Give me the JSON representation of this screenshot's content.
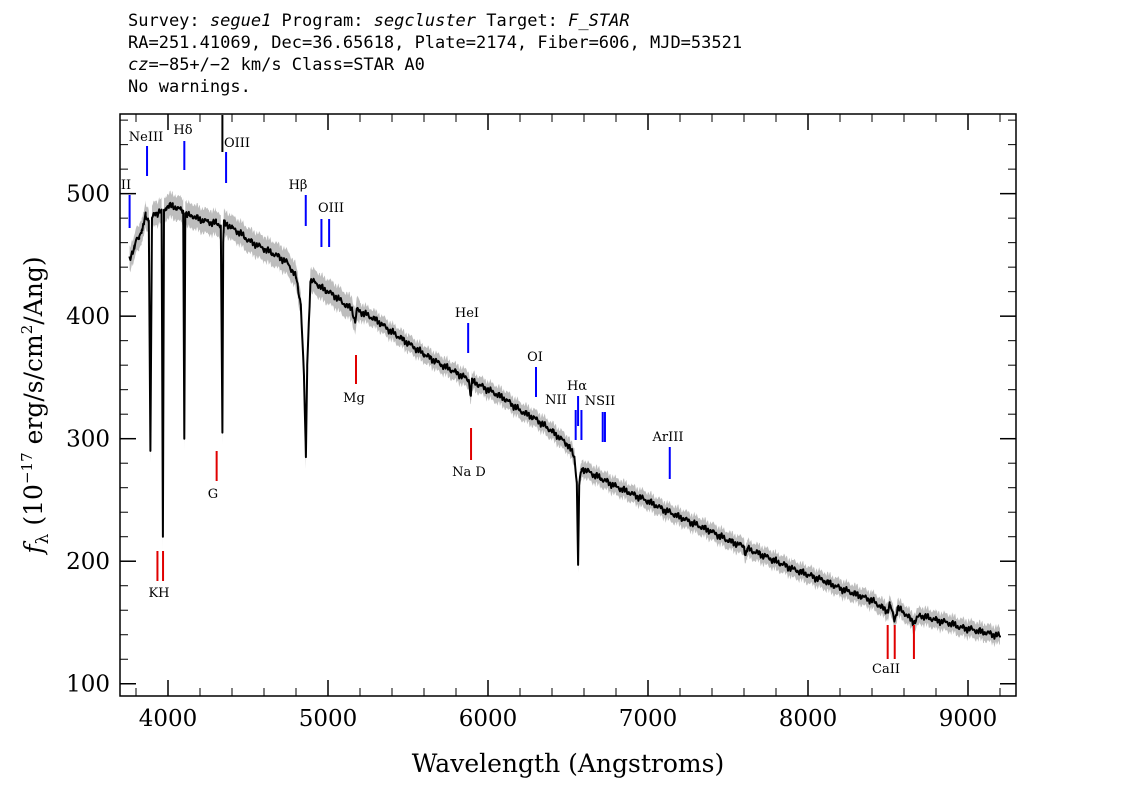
{
  "header": {
    "line1": {
      "survey_label": "Survey: ",
      "survey": "segue1",
      "program_label": " Program: ",
      "program": "segcluster",
      "target_label": " Target: ",
      "target": "F_STAR"
    },
    "line2": "RA=251.41069, Dec=36.65618, Plate=2174, Fiber=606, MJD=53521",
    "line3": {
      "cz_label": "cz",
      "cz_value": "=−85+/−2",
      "cz_rest": " km/s Class=STAR A0"
    },
    "line4": "No warnings."
  },
  "colors": {
    "spectrum": "#000000",
    "error_band": "#bdbdbd",
    "emission": "#0000ff",
    "absorption": "#e00000"
  },
  "chart_data": {
    "type": "line",
    "xlabel": "Wavelength (Angstroms)",
    "ylabel": "f_λ (10^-17 erg/s/cm²/Ang)",
    "xlim": [
      3700,
      9300
    ],
    "ylim": [
      90,
      565
    ],
    "x_ticks": [
      4000,
      5000,
      6000,
      7000,
      8000,
      9000
    ],
    "y_ticks": [
      100,
      200,
      300,
      400,
      500
    ],
    "x_tick_labels": [
      "4000",
      "5000",
      "6000",
      "7000",
      "8000",
      "9000"
    ],
    "y_tick_labels": [
      "100",
      "200",
      "300",
      "400",
      "500"
    ],
    "grid": false,
    "series": [
      {
        "x": [
          3760,
          3790,
          3800,
          3820,
          3835,
          3840,
          3850,
          3860,
          3880,
          3890,
          3900,
          3920,
          3930,
          3950,
          3960,
          3968,
          3975,
          3985,
          4000,
          4030,
          4060,
          4080,
          4095,
          4102,
          4108,
          4120,
          4150,
          4200,
          4250,
          4300,
          4330,
          4340,
          4345,
          4350,
          4370,
          4400,
          4450,
          4500,
          4600,
          4700,
          4750,
          4800,
          4830,
          4850,
          4862,
          4870,
          4890,
          4920,
          4950,
          5000,
          5050,
          5100,
          5150,
          5170,
          5180,
          5200,
          5300,
          5400,
          5500,
          5600,
          5700,
          5800,
          5880,
          5893,
          5900,
          6000,
          6100,
          6200,
          6300,
          6400,
          6500,
          6540,
          6555,
          6563,
          6570,
          6585,
          6600,
          6700,
          6800,
          6900,
          7000,
          7100,
          7200,
          7300,
          7400,
          7500,
          7600,
          7610,
          7620,
          7700,
          7800,
          7900,
          8000,
          8100,
          8200,
          8300,
          8400,
          8498,
          8510,
          8542,
          8560,
          8600,
          8662,
          8700,
          8800,
          8900,
          8950,
          9000,
          9100,
          9200
        ],
        "y": [
          448,
          455,
          462,
          465,
          470,
          470,
          476,
          482,
          478,
          290,
          480,
          484,
          484,
          486,
          484,
          220,
          486,
          488,
          490,
          490,
          488,
          487,
          486,
          300,
          484,
          482,
          482,
          479,
          477,
          476,
          474,
          305,
          460,
          476,
          475,
          472,
          468,
          462,
          455,
          448,
          443,
          432,
          410,
          350,
          285,
          360,
          428,
          428,
          424,
          420,
          416,
          410,
          406,
          395,
          405,
          404,
          397,
          387,
          378,
          369,
          361,
          354,
          348,
          335,
          347,
          340,
          333,
          323,
          316,
          306,
          295,
          285,
          265,
          197,
          262,
          275,
          275,
          268,
          261,
          255,
          249,
          242,
          236,
          230,
          224,
          217,
          212,
          205,
          210,
          206,
          200,
          194,
          189,
          184,
          178,
          173,
          168,
          159,
          165,
          152,
          162,
          158,
          150,
          156,
          152,
          149,
          146,
          145,
          142,
          139
        ]
      }
    ],
    "annotations": [
      {
        "label": "NeIII",
        "wave": 3869,
        "kind": "emission"
      },
      {
        "label": "Hδ",
        "wave": 4102,
        "kind": "emission"
      },
      {
        "label": "OIII",
        "wave": 4363,
        "kind": "emission"
      },
      {
        "label": "Hβ",
        "wave": 4861,
        "kind": "emission"
      },
      {
        "label": "OIII",
        "wave": 4959,
        "kind": "emission"
      },
      {
        "label": "OIII",
        "wave": 5007,
        "kind": "emission"
      },
      {
        "label": "HeI",
        "wave": 5876,
        "kind": "emission"
      },
      {
        "label": "OI",
        "wave": 6300,
        "kind": "emission"
      },
      {
        "label": "NII",
        "wave": 6548,
        "kind": "emission"
      },
      {
        "label": "Hα",
        "wave": 6563,
        "kind": "emission"
      },
      {
        "label": "NII",
        "wave": 6584,
        "kind": "emission"
      },
      {
        "label": "SII",
        "wave": 6717,
        "kind": "emission"
      },
      {
        "label": "SII",
        "wave": 6731,
        "kind": "emission"
      },
      {
        "label": "ArIII",
        "wave": 7136,
        "kind": "emission"
      },
      {
        "label": "K",
        "wave": 3934,
        "kind": "absorption"
      },
      {
        "label": "H",
        "wave": 3969,
        "kind": "absorption"
      },
      {
        "label": "G",
        "wave": 4304,
        "kind": "absorption"
      },
      {
        "label": "Mg",
        "wave": 5175,
        "kind": "absorption"
      },
      {
        "label": "Na D",
        "wave": 5894,
        "kind": "absorption"
      },
      {
        "label": "CaII",
        "wave": 8498,
        "kind": "absorption"
      },
      {
        "label": "CaII",
        "wave": 8542,
        "kind": "absorption"
      },
      {
        "label": "CaII",
        "wave": 8662,
        "kind": "absorption"
      }
    ],
    "annotation_texts": {
      "neiii": "NeIII",
      "hdelta": "Hδ",
      "oiii_a": "OIII",
      "hbeta": "Hβ",
      "oiii_b": "OIII",
      "hei": "HeI",
      "oi": "OI",
      "nii_a": "NII",
      "halpha": "Hα",
      "nii_sii": "NSII",
      "ariii": "ArIII",
      "kh": "KH",
      "g": "G",
      "mg": "Mg",
      "nad": "Na  D",
      "caii": "CaII",
      "edge_left": "II"
    }
  }
}
